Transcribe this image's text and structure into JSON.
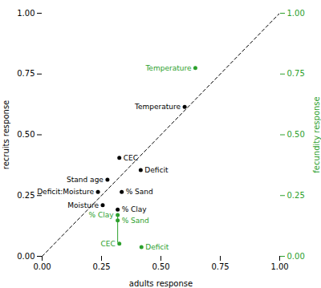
{
  "chart_data": {
    "type": "scatter",
    "xlabel": "adults response",
    "ylabel": "recruits response",
    "y2label": "fecundity response",
    "xlim": [
      0.0,
      1.0
    ],
    "ylim": [
      0.0,
      1.0
    ],
    "y2lim": [
      0.0,
      1.0
    ],
    "xticks": [
      {
        "value": 0.0,
        "label": "0.00"
      },
      0.25,
      {
        "value": 0.5,
        "label": "0.50"
      },
      0.75,
      {
        "value": 1.0,
        "label": "1.00"
      }
    ],
    "yticks": [
      {
        "value": 0.0,
        "label": "0.00"
      },
      0.25,
      {
        "value": 0.5,
        "label": "0.50"
      },
      0.75,
      {
        "value": 1.0,
        "label": "1.00"
      }
    ],
    "y2ticks": [
      {
        "value": 0.0,
        "label": "0.00"
      },
      0.25,
      {
        "value": 0.5,
        "label": "0.50"
      },
      0.75,
      {
        "value": 1.0,
        "label": "1.00"
      }
    ],
    "series": [
      {
        "color": "#000000",
        "axis": "y",
        "x": [
          0.6,
          0.325,
          0.415,
          0.275,
          0.235,
          0.335,
          0.255,
          0.318
        ],
        "y": [
          0.615,
          0.405,
          0.355,
          0.315,
          0.265,
          0.265,
          0.21,
          0.192
        ],
        "labels": [
          "Temperature",
          "CEC",
          "Deficit",
          "Stand age",
          "Deficit:Moisture",
          "% Sand",
          "Moisture",
          "% Clay"
        ]
      },
      {
        "color": "#2ca02c",
        "axis": "y2",
        "x": [
          0.645,
          0.318,
          0.318,
          0.325,
          0.418
        ],
        "y": [
          0.775,
          0.17,
          0.148,
          0.052,
          0.038
        ],
        "labels": [
          "Temperature",
          "% Clay",
          "% Sand",
          "CEC",
          "Deficit"
        ]
      }
    ],
    "lines": [
      {
        "x": [
          0,
          1
        ],
        "y": [
          0,
          1
        ],
        "color": "#000000",
        "line_style": "dashed",
        "axis": "y"
      },
      {
        "x": [
          0.318,
          0.318
        ],
        "y": [
          0.058,
          0.17
        ],
        "color": "#2ca02c",
        "axis": "y2"
      }
    ]
  }
}
